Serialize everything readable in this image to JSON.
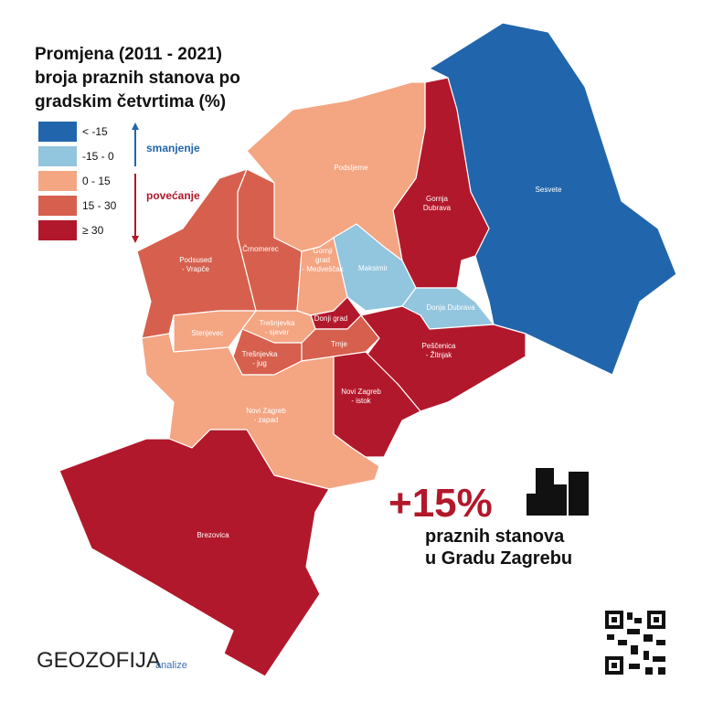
{
  "title": [
    "Promjena (2011 - 2021)",
    "broja praznih stanova po",
    "gradskim četvrtima (%)"
  ],
  "legend": {
    "items": [
      "< -15",
      "-15 - 0",
      "0 - 15",
      "15 - 30",
      "≥ 30"
    ],
    "decrease": "smanjenje",
    "increase": "povećanje"
  },
  "districts": [
    {
      "label": [
        "Sesvete"
      ]
    },
    {
      "label": [
        "Gornja",
        "Dubrava"
      ]
    },
    {
      "label": [
        "Podsljeme"
      ]
    },
    {
      "label": [
        "Črnomerec"
      ]
    },
    {
      "label": [
        "Podsused",
        "- Vrapče"
      ]
    },
    {
      "label": [
        "Maksimir"
      ]
    },
    {
      "label": [
        "Donja Dubrava"
      ]
    },
    {
      "label": [
        "Gornji",
        "grad",
        "- Medveščak"
      ]
    },
    {
      "label": [
        "Donji grad"
      ]
    },
    {
      "label": [
        "Trnje"
      ]
    },
    {
      "label": [
        "Stenjevec"
      ]
    },
    {
      "label": [
        "Trešnjevka",
        "- sjever"
      ]
    },
    {
      "label": [
        "Trešnjevka",
        "- jug"
      ]
    },
    {
      "label": [
        "Peščenica",
        "- Žitnjak"
      ]
    },
    {
      "label": [
        "Novi Zagreb",
        "- istok"
      ]
    },
    {
      "label": [
        "Novi Zagreb",
        "- zapad"
      ]
    },
    {
      "label": [
        "Brezovica"
      ]
    }
  ],
  "highlight": {
    "value": "+15%",
    "caption": [
      "praznih stanova",
      "u Gradu Zagrebu"
    ]
  },
  "logo": {
    "name": "GEOZOFIJA",
    "suffix": "analize"
  }
}
